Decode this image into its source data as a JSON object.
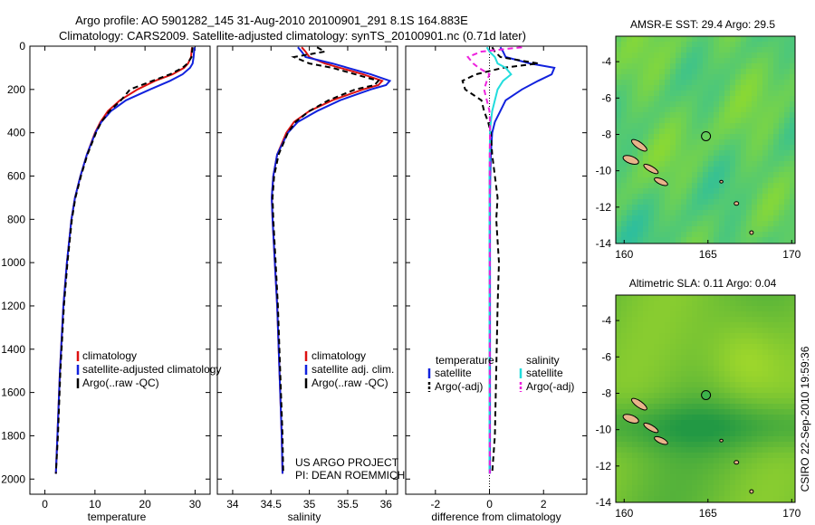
{
  "title": {
    "line1": "Argo profile: AO 5901282_145 31-Aug-2010 20100901_291 8.1S 164.883E",
    "line2": "Climatology: CARS2009. Satellite-adjusted climatology: synTS_20100901.nc (0.71d later)"
  },
  "side_caption": "CSIRO 22-Sep-2010 19:59:36",
  "colors": {
    "climatology": "#dd1111",
    "satellite": "#1122dd",
    "argo": "#000000",
    "salinity_satellite": "#22dddd",
    "salinity_argo": "#ee22dd",
    "map_low": "#33bb55",
    "map_high": "#bbee22",
    "land": "#e8b48a"
  },
  "chart_data": [
    {
      "type": "line",
      "id": "temperature",
      "xlabel": "temperature",
      "ylabel": "",
      "xlim": [
        -3,
        33
      ],
      "ylim": [
        2070,
        0
      ],
      "x_ticks": [
        0,
        10,
        20,
        30
      ],
      "y_ticks": [
        0,
        200,
        400,
        600,
        800,
        1000,
        1200,
        1400,
        1600,
        1800,
        2000
      ],
      "depth": [
        5,
        25,
        50,
        80,
        100,
        130,
        160,
        200,
        250,
        300,
        350,
        400,
        500,
        600,
        700,
        800,
        1000,
        1200,
        1500,
        1800,
        1975
      ],
      "series": [
        {
          "name": "climatology",
          "values": [
            29.4,
            29.3,
            29.2,
            28.6,
            27.8,
            25.5,
            22.0,
            18.5,
            15.0,
            12.6,
            11.1,
            10.0,
            8.4,
            7.1,
            6.0,
            5.3,
            4.4,
            3.7,
            3.0,
            2.5,
            2.2
          ]
        },
        {
          "name": "satellite-adjusted climatology",
          "values": [
            29.9,
            29.8,
            29.7,
            29.5,
            29.0,
            27.5,
            25.0,
            21.0,
            16.2,
            13.2,
            11.3,
            10.1,
            8.4,
            7.1,
            6.0,
            5.3,
            4.4,
            3.7,
            3.0,
            2.5,
            2.2
          ]
        },
        {
          "name": "Argo(..raw -QC)",
          "values": [
            29.5,
            29.4,
            29.3,
            28.5,
            27.5,
            25.0,
            21.5,
            17.0,
            15.2,
            12.9,
            11.3,
            10.2,
            8.5,
            7.2,
            6.1,
            5.4,
            4.5,
            3.8,
            3.1,
            2.6,
            2.2
          ]
        }
      ],
      "legend": [
        "climatology",
        "satellite-adjusted climatology",
        "Argo(..raw -QC)"
      ]
    },
    {
      "type": "line",
      "id": "salinity",
      "xlabel": "salinity",
      "ylabel": "",
      "xlim": [
        33.8,
        36.15
      ],
      "ylim": [
        2070,
        0
      ],
      "x_ticks": [
        34,
        34.5,
        35,
        35.5,
        36
      ],
      "depth": [
        5,
        25,
        50,
        80,
        100,
        130,
        160,
        180,
        200,
        250,
        300,
        350,
        400,
        500,
        600,
        700,
        800,
        1000,
        1200,
        1500,
        1800,
        1975
      ],
      "series": [
        {
          "name": "climatology",
          "values": [
            34.9,
            34.95,
            35.0,
            35.2,
            35.4,
            35.7,
            35.95,
            35.9,
            35.7,
            35.3,
            35.0,
            34.8,
            34.7,
            34.58,
            34.53,
            34.51,
            34.52,
            34.55,
            34.58,
            34.61,
            34.64,
            34.65
          ]
        },
        {
          "name": "satellite adj. clim.",
          "values": [
            34.85,
            34.9,
            34.95,
            35.3,
            35.5,
            35.8,
            36.05,
            36.0,
            35.8,
            35.4,
            35.1,
            34.85,
            34.72,
            34.58,
            34.53,
            34.51,
            34.52,
            34.55,
            34.58,
            34.61,
            34.64,
            34.65
          ]
        },
        {
          "name": "Argo(..raw -QC)",
          "values": [
            35.1,
            35.2,
            34.8,
            35.0,
            35.3,
            35.6,
            35.9,
            35.85,
            35.6,
            35.25,
            35.0,
            34.82,
            34.72,
            34.6,
            34.54,
            34.52,
            34.53,
            34.56,
            34.59,
            34.62,
            34.65,
            34.66
          ]
        }
      ],
      "legend": [
        "climatology",
        "satellite adj. clim.",
        "Argo(..raw -QC)"
      ],
      "annotation": [
        "US ARGO PROJECT",
        "PI: DEAN ROEMMICH"
      ]
    },
    {
      "type": "line",
      "id": "difference",
      "xlabel": "difference from climatology",
      "ylabel": "",
      "xlim": [
        -3.1,
        3.6
      ],
      "ylim": [
        2070,
        0
      ],
      "x_ticks": [
        -2,
        0,
        2
      ],
      "depth": [
        5,
        25,
        50,
        80,
        100,
        130,
        160,
        200,
        250,
        300,
        350,
        400,
        500,
        600,
        700,
        800,
        900,
        1000,
        1200,
        1500,
        1800,
        1975
      ],
      "series": [
        {
          "name": "temperature satellite",
          "values": [
            0.4,
            0.5,
            0.6,
            1.5,
            2.4,
            2.3,
            1.8,
            1.2,
            0.6,
            0.4,
            0.2,
            0.1,
            0.05,
            0.03,
            0.02,
            0.02,
            0.02,
            0.02,
            0.02,
            0.02,
            0.02,
            0.02
          ]
        },
        {
          "name": "temperature Argo(-adj)",
          "values": [
            0.1,
            0.2,
            0.4,
            1.8,
            0.5,
            -0.5,
            -1.0,
            -0.9,
            -0.3,
            -0.2,
            -0.05,
            0.05,
            0.1,
            0.2,
            0.3,
            0.25,
            0.3,
            0.35,
            0.3,
            0.25,
            0.2,
            0.1
          ]
        },
        {
          "name": "salinity satellite",
          "values": [
            -0.1,
            0.0,
            0.2,
            0.3,
            0.6,
            0.8,
            0.5,
            0.3,
            0.2,
            0.1,
            0.05,
            0.02,
            0.01,
            0.0,
            0.0,
            0.0,
            0.0,
            0.0,
            0.0,
            0.0,
            0.0,
            0.0
          ]
        },
        {
          "name": "salinity Argo(-adj)",
          "values": [
            1.2,
            -0.3,
            -0.8,
            -0.6,
            -0.4,
            0.0,
            -0.1,
            -0.2,
            -0.1,
            0.0,
            0.02,
            0.02,
            0.01,
            0.01,
            0.01,
            0.01,
            0.01,
            0.01,
            0.01,
            0.01,
            0.01,
            0.01
          ]
        }
      ],
      "legend": {
        "temperature_header": "temperature",
        "salinity_header": "salinity",
        "entries": [
          "satellite",
          "Argo(-adj)",
          "satellite",
          "Argo(-adj)"
        ]
      }
    },
    {
      "type": "heatmap",
      "id": "sst-map",
      "title": "AMSR-E SST: 29.4 Argo: 29.5",
      "xlim": [
        159.5,
        170.2
      ],
      "ylim": [
        -14,
        -2.6
      ],
      "x_ticks": [
        160,
        165,
        170
      ],
      "y_ticks": [
        -4,
        -6,
        -8,
        -10,
        -12,
        -14
      ],
      "marker": {
        "lon": 164.883,
        "lat": -8.1,
        "filled": false
      }
    },
    {
      "type": "heatmap",
      "id": "sla-map",
      "title": "Altimetric SLA: 0.11 Argo: 0.04",
      "xlim": [
        159.5,
        170.2
      ],
      "ylim": [
        -14,
        -2.6
      ],
      "x_ticks": [
        160,
        165,
        170
      ],
      "y_ticks": [
        -4,
        -6,
        -8,
        -10,
        -12,
        -14
      ],
      "marker": {
        "lon": 164.883,
        "lat": -8.1,
        "filled": true
      }
    }
  ]
}
